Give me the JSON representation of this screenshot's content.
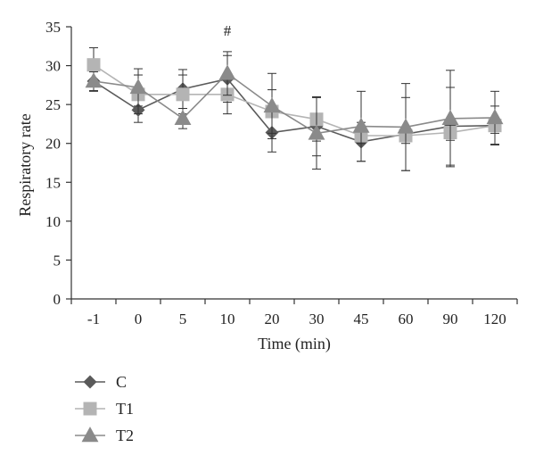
{
  "chart_data": {
    "type": "line",
    "xlabel": "Time (min)",
    "ylabel": "Respiratory rate",
    "categories": [
      "-1",
      "0",
      "5",
      "10",
      "20",
      "30",
      "45",
      "60",
      "90",
      "120"
    ],
    "ylim": [
      0,
      35
    ],
    "yticks": [
      "0",
      "5",
      "10",
      "15",
      "20",
      "25",
      "30",
      "35"
    ],
    "grid": false,
    "legend_placement": "bottom-left",
    "annotations": [
      {
        "category": "10",
        "text": "#"
      }
    ],
    "series": [
      {
        "name": "C",
        "marker": "diamond",
        "color": "#5a5a5a",
        "values": [
          28.0,
          24.3,
          27.0,
          28.3,
          21.4,
          22.2,
          20.2,
          21.2,
          22.2,
          22.3
        ],
        "error": [
          1.3,
          1.6,
          2.5,
          3.0,
          2.5,
          3.8,
          2.5,
          4.7,
          5.0,
          2.5
        ]
      },
      {
        "name": "T1",
        "marker": "square",
        "color": "#b4b4b4",
        "values": [
          30.1,
          26.3,
          26.3,
          26.3,
          24.1,
          23.1,
          21.0,
          21.0,
          21.4,
          22.3
        ],
        "error": [
          2.2,
          2.5,
          2.5,
          2.5,
          2.8,
          2.8,
          1.0,
          1.0,
          1.0,
          1.0
        ]
      },
      {
        "name": "T2",
        "marker": "triangle",
        "color": "#8a8a8a",
        "values": [
          28.0,
          27.2,
          23.2,
          29.0,
          24.8,
          21.3,
          22.2,
          22.1,
          23.2,
          23.3
        ],
        "error": [
          1.2,
          2.4,
          1.3,
          2.8,
          4.2,
          4.6,
          4.5,
          5.6,
          6.2,
          3.4
        ]
      }
    ]
  }
}
